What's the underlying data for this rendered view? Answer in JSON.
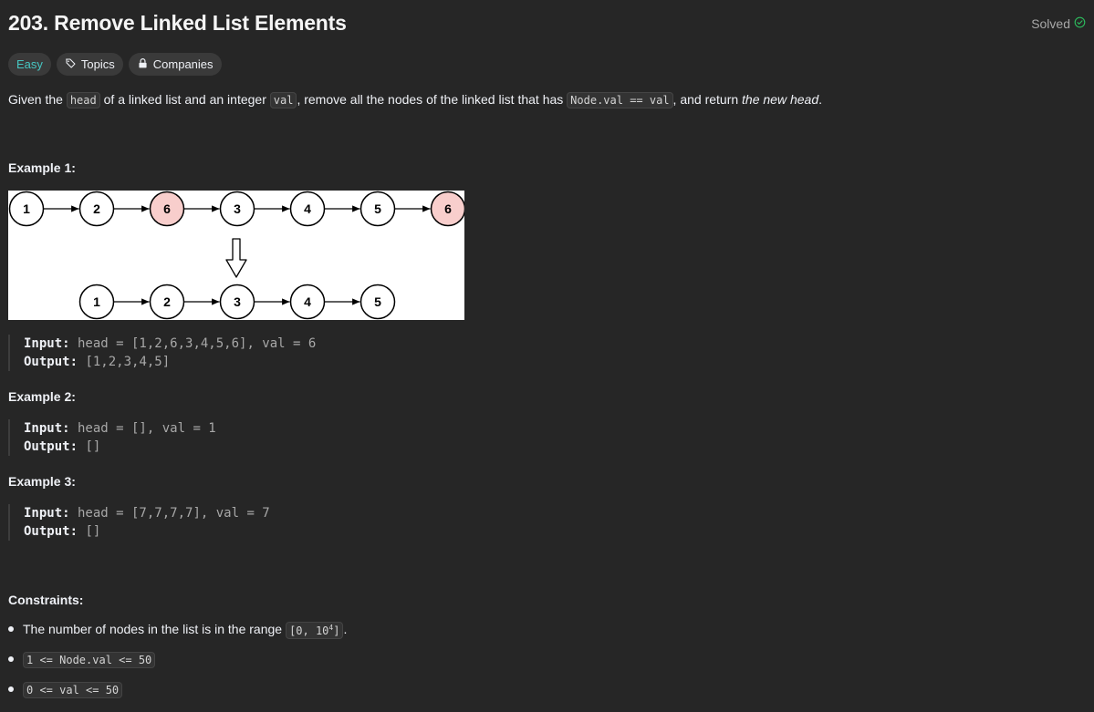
{
  "problem": {
    "title": "203. Remove Linked List Elements",
    "status": "Solved"
  },
  "tags": {
    "difficulty": "Easy",
    "topics": "Topics",
    "companies": "Companies"
  },
  "description": {
    "p1": "Given the ",
    "c1": "head",
    "p2": " of a linked list and an integer ",
    "c2": "val",
    "p3": ", remove all the nodes of the linked list that has ",
    "c3": "Node.val == val",
    "p4": ", and return ",
    "em": "the new head",
    "p5": "."
  },
  "examples": [
    {
      "title": "Example 1:",
      "input_label": "Input:",
      "input": " head = [1,2,6,3,4,5,6], val = 6",
      "output_label": "Output:",
      "output": " [1,2,3,4,5]",
      "diagram": {
        "top_nodes": [
          "1",
          "2",
          "6",
          "3",
          "4",
          "5",
          "6"
        ],
        "top_removed": [
          false,
          false,
          true,
          false,
          false,
          false,
          true
        ],
        "bottom_nodes": [
          "1",
          "2",
          "3",
          "4",
          "5"
        ]
      }
    },
    {
      "title": "Example 2:",
      "input_label": "Input:",
      "input": " head = [], val = 1",
      "output_label": "Output:",
      "output": " []"
    },
    {
      "title": "Example 3:",
      "input_label": "Input:",
      "input": " head = [7,7,7,7], val = 7",
      "output_label": "Output:",
      "output": " []"
    }
  ],
  "constraints": {
    "title": "Constraints:",
    "item1_text": "The number of nodes in the list is in the range ",
    "item1_code_a": "[0, 10",
    "item1_code_sup": "4",
    "item1_code_b": "]",
    "item1_end": ".",
    "item2_code": "1 <= Node.val <= 50",
    "item3_code": "0 <= val <= 50"
  },
  "colors": {
    "accent_easy": "#46c6c2",
    "solved_check": "#2cbb5d",
    "removed_node_fill": "#f8cecc"
  }
}
